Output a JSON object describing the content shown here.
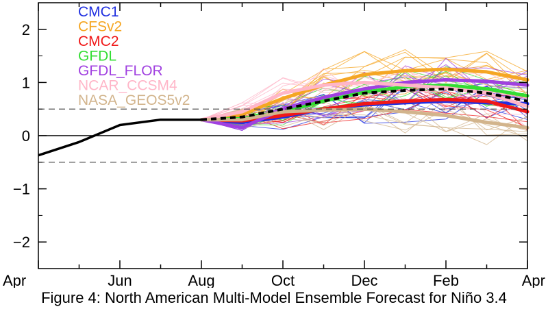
{
  "caption": "Figure 4: North American Multi-Model Ensemble Forecast for Niño 3.4",
  "chart_data": {
    "type": "line",
    "title": "",
    "xlabel": "",
    "ylabel": "",
    "x_ticks": [
      "Apr",
      "Jun",
      "Aug",
      "Oct",
      "Dec",
      "Feb",
      "Apr"
    ],
    "xlim": [
      0,
      12
    ],
    "ylim": [
      -2.5,
      2.5
    ],
    "y_ticks": [
      -2,
      -1,
      0,
      1,
      2
    ],
    "y_tick_labels": [
      "−2",
      "−1",
      "0",
      "1",
      "2"
    ],
    "reference_lines": [
      {
        "y": 0.5,
        "style": "dashed"
      },
      {
        "y": 0,
        "style": "solid"
      },
      {
        "y": -0.5,
        "style": "dashed"
      }
    ],
    "legend_position": "top-left",
    "observed": {
      "color": "#000000",
      "x": [
        0,
        1,
        2,
        3,
        4
      ],
      "y": [
        -0.37,
        -0.12,
        0.2,
        0.3,
        0.3
      ]
    },
    "ensemble_mean": {
      "color": "#000000",
      "style": "dashed",
      "x": [
        4,
        5,
        6,
        7,
        8,
        9,
        10,
        11,
        12
      ],
      "y": [
        0.3,
        0.35,
        0.5,
        0.65,
        0.8,
        0.85,
        0.88,
        0.8,
        0.65
      ]
    },
    "series": [
      {
        "name": "CMC1",
        "color": "#1f2fe0",
        "x": [
          4,
          5,
          6,
          7,
          8,
          9,
          10,
          11,
          12
        ],
        "y": [
          0.3,
          0.25,
          0.35,
          0.5,
          0.58,
          0.62,
          0.65,
          0.62,
          0.6
        ],
        "spread": 0.25
      },
      {
        "name": "CFSv2",
        "color": "#f5a623",
        "x": [
          4,
          5,
          6,
          7,
          8,
          9,
          10,
          11,
          12
        ],
        "y": [
          0.3,
          0.4,
          0.7,
          0.95,
          1.15,
          1.22,
          1.25,
          1.2,
          1.05
        ],
        "spread": 0.3
      },
      {
        "name": "CMC2",
        "color": "#f01818",
        "x": [
          4,
          5,
          6,
          7,
          8,
          9,
          10,
          11,
          12
        ],
        "y": [
          0.3,
          0.28,
          0.38,
          0.5,
          0.6,
          0.65,
          0.68,
          0.65,
          0.45
        ],
        "spread": 0.25
      },
      {
        "name": "GFDL",
        "color": "#33dd33",
        "x": [
          4,
          5,
          6,
          7,
          8,
          9,
          10,
          11,
          12
        ],
        "y": [
          0.3,
          0.32,
          0.45,
          0.65,
          0.82,
          0.92,
          0.95,
          0.88,
          0.75
        ],
        "spread": 0.25
      },
      {
        "name": "GFDL_FLOR",
        "color": "#a040e0",
        "x": [
          4,
          5,
          6,
          7,
          8,
          9,
          10,
          11,
          12
        ],
        "y": [
          0.3,
          0.15,
          0.5,
          0.72,
          0.88,
          1.0,
          1.05,
          1.02,
          0.95
        ],
        "spread": 0.3
      },
      {
        "name": "NCAR_CCSM4",
        "color": "#ffb6c8",
        "x": [
          4,
          5,
          6,
          7,
          8,
          9,
          10,
          11,
          12
        ],
        "y": [
          0.3,
          0.45,
          0.8,
          0.95,
          1.0,
          0.95,
          0.9,
          0.8,
          0.55
        ],
        "spread": 0.3
      },
      {
        "name": "NASA_GEOS5v2",
        "color": "#d2b48c",
        "x": [
          4,
          5,
          6,
          7,
          8,
          9,
          10,
          11,
          12
        ],
        "y": [
          0.3,
          0.3,
          0.45,
          0.48,
          0.5,
          0.45,
          0.38,
          0.25,
          0.15
        ],
        "spread": 0.3
      }
    ]
  }
}
